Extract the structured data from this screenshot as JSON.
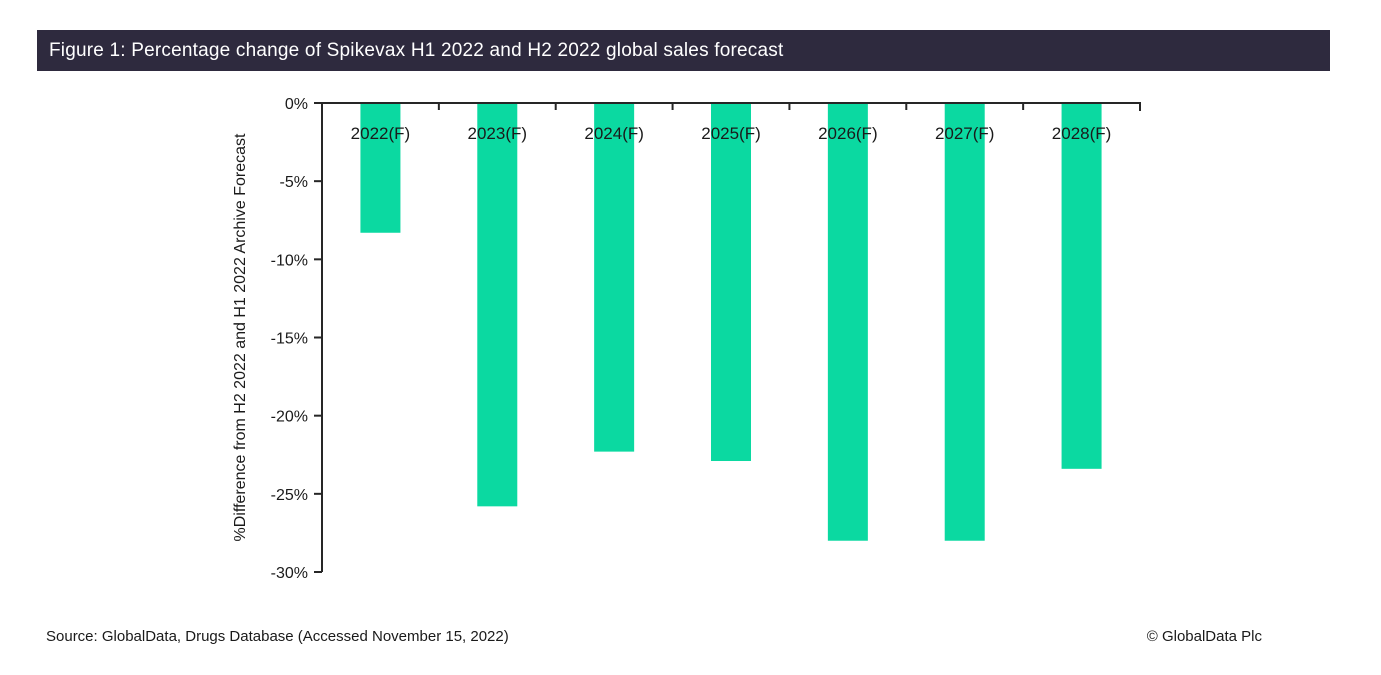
{
  "figure": {
    "title": "Figure 1: Percentage change of Spikevax H1 2022 and H2 2022 global sales forecast"
  },
  "footer": {
    "source": "Source: GlobalData, Drugs Database (Accessed November 15, 2022)",
    "copyright": "© GlobalData Plc"
  },
  "colors": {
    "title_bar_bg": "#2E2A3E",
    "title_text": "#FFFFFF",
    "bar_fill": "#0BD9A1",
    "axis": "#262626",
    "text": "#1A1A1A"
  },
  "chart_data": {
    "type": "bar",
    "title": "Figure 1: Percentage change of Spikevax H1 2022 and H2 2022 global sales forecast",
    "categories": [
      "2022(F)",
      "2023(F)",
      "2024(F)",
      "2025(F)",
      "2026(F)",
      "2027(F)",
      "2028(F)"
    ],
    "values": [
      -8.3,
      -25.8,
      -22.3,
      -22.9,
      -28,
      -28,
      -23.4
    ],
    "xlabel": "",
    "ylabel": "%Difference from H2 2022 and H1 2022 Archive Forecast",
    "yticks": [
      "0%",
      "-5%",
      "-10%",
      "-15%",
      "-20%",
      "-25%",
      "-30%"
    ],
    "ylim": [
      -30,
      0
    ],
    "grid": false,
    "legend": "none",
    "bar_orientation": "vertical-negative",
    "category_label_position": "inside-top"
  }
}
